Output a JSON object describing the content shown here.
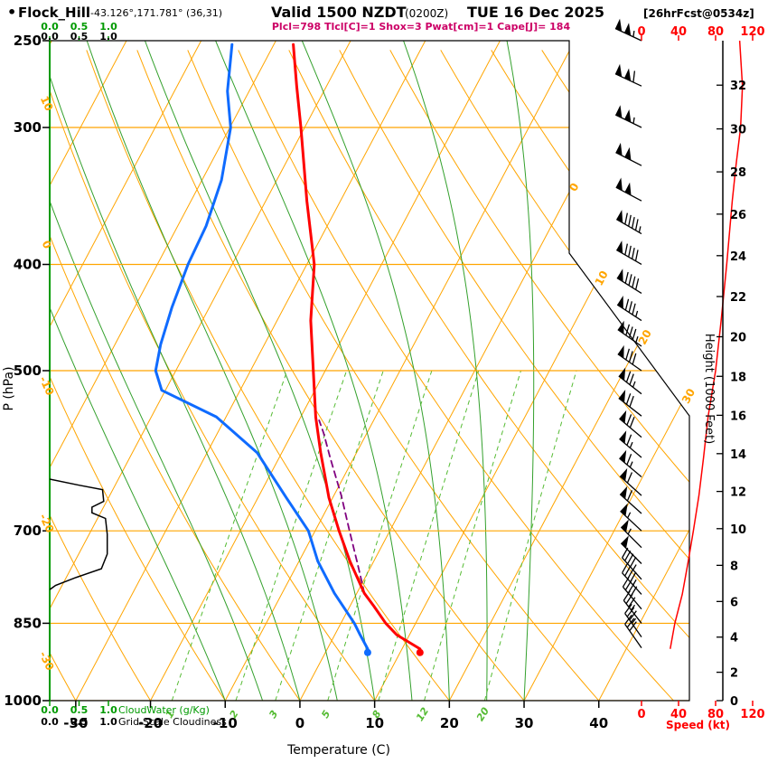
{
  "header": {
    "bullet": "•",
    "station": "Flock_Hill",
    "coords": "-43.126°,171.781° (36,31)",
    "valid_main": "Valid 1500 NZDT",
    "valid_z": "(0200Z)",
    "valid_date": "TUE 16 Dec 2025",
    "fcst": "[26hrFcst@0534z]",
    "indices": "Plcl=798 Tlcl[C]=1 Shox=3 Pwat[cm]=1 Cape[J]= 184"
  },
  "chart_data": {
    "type": "line",
    "subtype": "skew-t-log-p-sounding",
    "title": "Flock_Hill Valid 1500 NZDT (0200Z) TUE 16 Dec 2025 [26hrFcst@0534z]",
    "indices": {
      "Plcl": 798,
      "Tlcl_C": 1,
      "Shox": 3,
      "Pwat_cm": 1,
      "Cape_J": 184
    },
    "axes": {
      "pressure_label": "P (hPa)",
      "pressure_ticks": [
        250,
        300,
        400,
        500,
        700,
        850,
        1000
      ],
      "pressure_range": [
        1000,
        250
      ],
      "pressure_scale": "log",
      "temp_label": "Temperature (C)",
      "temp_ticks": [
        -30,
        -20,
        -10,
        0,
        10,
        20,
        30,
        40
      ],
      "temp_range": [
        -35,
        46
      ],
      "height_label": "Height (1000 Feet)",
      "height_ticks": [
        0,
        2,
        4,
        6,
        8,
        10,
        12,
        14,
        16,
        18,
        20,
        22,
        24,
        26,
        28,
        30,
        32
      ],
      "speed_label": "Speed (kt)",
      "speed_ticks": [
        0,
        40,
        80,
        120
      ],
      "cloud_scale_ticks": [
        "0.0",
        "0.5",
        "1.0"
      ],
      "cloudwater_label": "CloudWater (g/Kg)",
      "cloudiness_label": "Grid-Scale Cloudiness"
    },
    "grid": {
      "isotherm_step": 10,
      "dry_adiabat_step": 10,
      "moist_adiabats": [
        -10,
        -5,
        0,
        5,
        10,
        15,
        20,
        25,
        30
      ],
      "mixing_ratios": [
        1,
        2,
        3,
        5,
        8,
        12,
        20
      ],
      "dry_adiabat_labels": [
        10,
        0,
        -10,
        -20,
        -30
      ],
      "isotherm_labels": [
        0,
        10,
        20,
        30
      ]
    },
    "temperature_profile": [
      [
        897,
        12.4
      ],
      [
        871,
        8.3
      ],
      [
        850,
        6.0
      ],
      [
        820,
        3.2
      ],
      [
        798,
        1.0
      ],
      [
        746,
        -3.2
      ],
      [
        700,
        -6.8
      ],
      [
        653,
        -10.5
      ],
      [
        594,
        -14.8
      ],
      [
        551,
        -18.0
      ],
      [
        500,
        -21.6
      ],
      [
        450,
        -25.5
      ],
      [
        400,
        -29.0
      ],
      [
        350,
        -34.5
      ],
      [
        300,
        -40.5
      ],
      [
        275,
        -44.0
      ],
      [
        252,
        -47.4
      ]
    ],
    "dewpoint_profile": [
      [
        897,
        5.4
      ],
      [
        871,
        3.4
      ],
      [
        850,
        1.8
      ],
      [
        798,
        -3.0
      ],
      [
        746,
        -7.5
      ],
      [
        700,
        -10.9
      ],
      [
        653,
        -16.2
      ],
      [
        594,
        -23.3
      ],
      [
        551,
        -31.3
      ],
      [
        521,
        -40.5
      ],
      [
        500,
        -42.7
      ],
      [
        473,
        -43.9
      ],
      [
        438,
        -45.0
      ],
      [
        400,
        -45.9
      ],
      [
        369,
        -46.2
      ],
      [
        335,
        -47.4
      ],
      [
        300,
        -49.9
      ],
      [
        278,
        -52.9
      ],
      [
        252,
        -55.6
      ]
    ],
    "parcel_profile": [
      [
        798,
        1.0
      ],
      [
        775,
        -0.4
      ],
      [
        750,
        -2.0
      ],
      [
        700,
        -5.4
      ],
      [
        650,
        -9.0
      ],
      [
        600,
        -13.2
      ],
      [
        570,
        -15.8
      ],
      [
        555,
        -17.3
      ]
    ],
    "surface_markers": {
      "temperature": [
        897,
        12.4
      ],
      "dewpoint": [
        897,
        5.4
      ]
    },
    "cloud_profile": [
      [
        628,
        0
      ],
      [
        636,
        0.5
      ],
      [
        642,
        0.9
      ],
      [
        658,
        0.92
      ],
      [
        666,
        0.72
      ],
      [
        674,
        0.72
      ],
      [
        682,
        0.95
      ],
      [
        705,
        0.98
      ],
      [
        735,
        0.98
      ],
      [
        758,
        0.88
      ],
      [
        772,
        0.45
      ],
      [
        785,
        0.1
      ],
      [
        792,
        0
      ]
    ],
    "wind_speed_profile": [
      [
        897,
        31
      ],
      [
        850,
        36
      ],
      [
        800,
        44
      ],
      [
        750,
        50
      ],
      [
        700,
        56
      ],
      [
        650,
        62
      ],
      [
        600,
        67
      ],
      [
        550,
        72
      ],
      [
        500,
        80
      ],
      [
        450,
        86
      ],
      [
        400,
        92
      ],
      [
        350,
        98
      ],
      [
        325,
        102
      ],
      [
        300,
        107
      ],
      [
        275,
        109
      ],
      [
        250,
        106
      ]
    ],
    "wind_barbs": [
      [
        895,
        30,
        325
      ],
      [
        875,
        33,
        325
      ],
      [
        850,
        36,
        322
      ],
      [
        825,
        40,
        320
      ],
      [
        800,
        44,
        318
      ],
      [
        775,
        47,
        318
      ],
      [
        750,
        50,
        315
      ],
      [
        725,
        53,
        315
      ],
      [
        700,
        56,
        313
      ],
      [
        675,
        59,
        312
      ],
      [
        650,
        62,
        312
      ],
      [
        625,
        64,
        310
      ],
      [
        600,
        67,
        310
      ],
      [
        575,
        70,
        310
      ],
      [
        550,
        72,
        308
      ],
      [
        525,
        75,
        308
      ],
      [
        500,
        80,
        305
      ],
      [
        475,
        83,
        305
      ],
      [
        450,
        86,
        303
      ],
      [
        425,
        89,
        302
      ],
      [
        400,
        92,
        300
      ],
      [
        375,
        95,
        300
      ],
      [
        350,
        98,
        298
      ],
      [
        325,
        102,
        297
      ],
      [
        300,
        107,
        296
      ],
      [
        275,
        109,
        295
      ],
      [
        250,
        106,
        295
      ]
    ],
    "colors": {
      "grid_orange": "#ffa500",
      "moist_green": "#33a02c",
      "mixing_green": "#55bb33",
      "scale_green": "#009a00",
      "temperature": "#ff0000",
      "dewpoint": "#0f6bff",
      "parcel": "#800080",
      "indices_magenta": "#cc0066",
      "barbs": "#000000"
    }
  }
}
